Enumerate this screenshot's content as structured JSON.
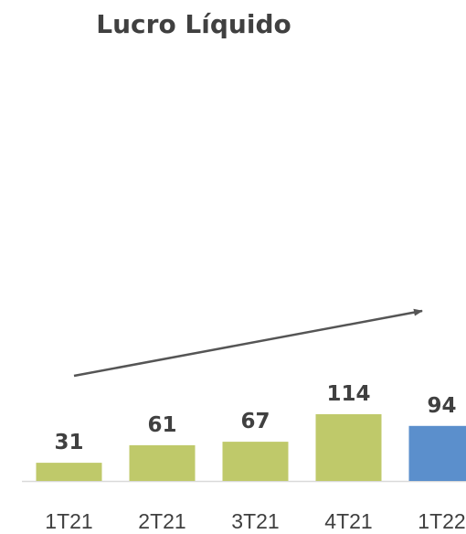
{
  "chart_data": {
    "type": "bar",
    "title": "Lucro Líquido",
    "categories": [
      "1T21",
      "2T21",
      "3T21",
      "4T21",
      "1T22"
    ],
    "values": [
      31,
      61,
      67,
      114,
      94
    ],
    "data_labels": [
      "31",
      "61",
      "67",
      "114",
      "94"
    ],
    "bar_colors": [
      "#bfc96a",
      "#bfc96a",
      "#bfc96a",
      "#bfc96a",
      "#5b8fcc"
    ],
    "trend_arrow": true,
    "trend_color": "#555555",
    "grid": false,
    "yaxis_visible": false,
    "ylim": [
      0,
      114
    ]
  }
}
